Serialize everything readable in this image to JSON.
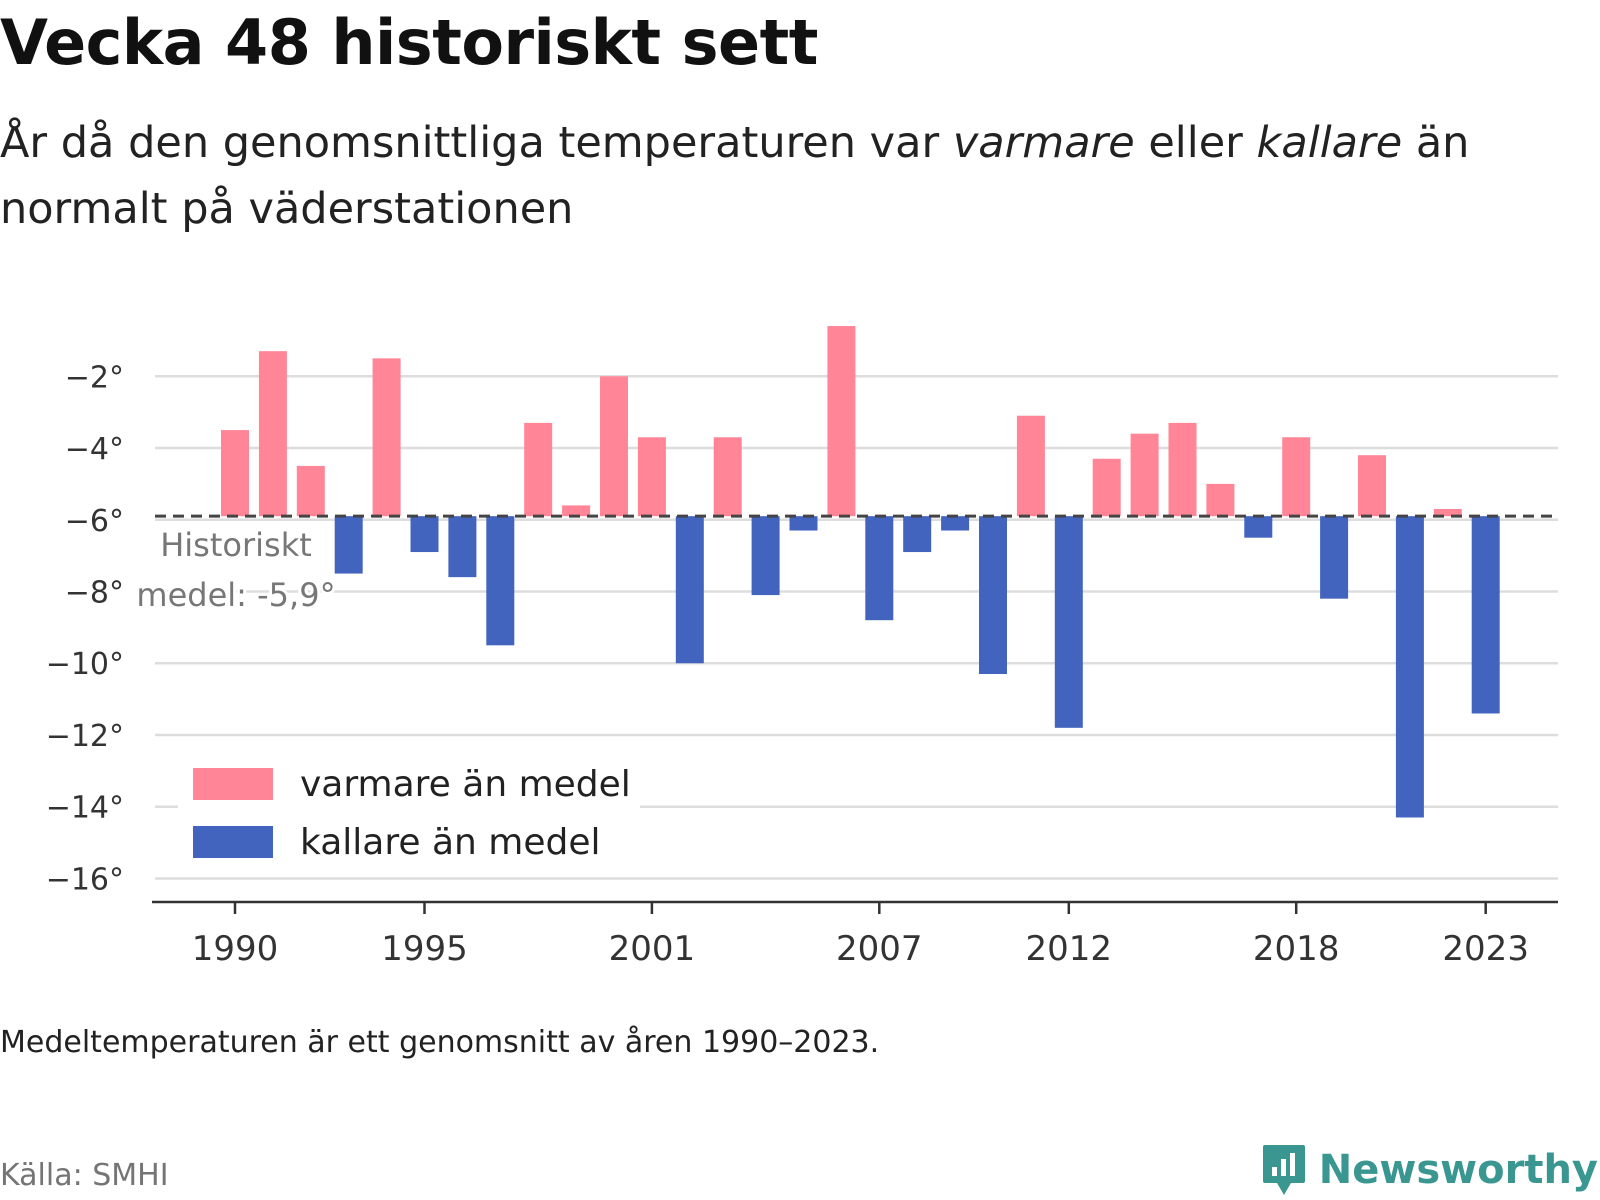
{
  "header": {
    "title": "Vecka 48 historiskt sett",
    "subtitle_part1": "År då den genomsnittliga temperaturen var ",
    "subtitle_em1": "varmare",
    "subtitle_part2": " eller ",
    "subtitle_em2": "kallare",
    "subtitle_part3": " än normalt på väderstationen"
  },
  "colors": {
    "warmer": "#ff8597",
    "colder": "#4264be",
    "grid": "#dddddd",
    "axis": "#333333",
    "reference_line": "#444444",
    "brand": "#3a9690"
  },
  "chart_data": {
    "type": "bar",
    "title": "Vecka 48 historiskt sett",
    "xlabel": "",
    "ylabel": "",
    "baseline": -5.9,
    "baseline_label_line1": "Historiskt",
    "baseline_label_line2": "medel: -5,9°",
    "ylim": [
      -16.6,
      0.6
    ],
    "y_ticks": [
      -2,
      -4,
      -6,
      -8,
      -10,
      -12,
      -14,
      -16
    ],
    "y_tick_labels": [
      "−2°",
      "−4°",
      "−6°",
      "−8°",
      "−10°",
      "−12°",
      "−14°",
      "−16°"
    ],
    "x_tick_years": [
      1990,
      1995,
      2001,
      2007,
      2012,
      2018,
      2023
    ],
    "x_tick_labels": [
      "1990",
      "1995",
      "2001",
      "2007",
      "2012",
      "2018",
      "2023"
    ],
    "years": [
      1990,
      1991,
      1992,
      1993,
      1994,
      1995,
      1996,
      1997,
      1998,
      1999,
      2000,
      2001,
      2002,
      2003,
      2004,
      2005,
      2006,
      2007,
      2008,
      2009,
      2010,
      2011,
      2012,
      2013,
      2014,
      2015,
      2016,
      2017,
      2018,
      2019,
      2020,
      2021,
      2022,
      2023
    ],
    "values": [
      -3.5,
      -1.3,
      -4.5,
      -7.5,
      -1.5,
      -6.9,
      -7.6,
      -9.5,
      -3.3,
      -5.6,
      -2.0,
      -3.7,
      -10.0,
      -3.7,
      -8.1,
      -6.3,
      -0.6,
      -8.8,
      -6.9,
      -6.3,
      -10.3,
      -3.1,
      -11.8,
      -4.3,
      -3.6,
      -3.3,
      -5.0,
      -6.5,
      -3.7,
      -8.2,
      -4.2,
      -14.3,
      -5.7,
      -11.4
    ],
    "grid": true,
    "legend_position": "bottom-left",
    "legend": [
      {
        "label": "varmare än medel",
        "color_key": "warmer"
      },
      {
        "label": "kallare än medel",
        "color_key": "colder"
      }
    ]
  },
  "footer": {
    "note": "Medeltemperaturen är ett genomsnitt av åren 1990–2023.",
    "source": "Källa: SMHI",
    "brand_name": "Newsworthy",
    "brand_icon": "newsworthy-logo-icon"
  }
}
